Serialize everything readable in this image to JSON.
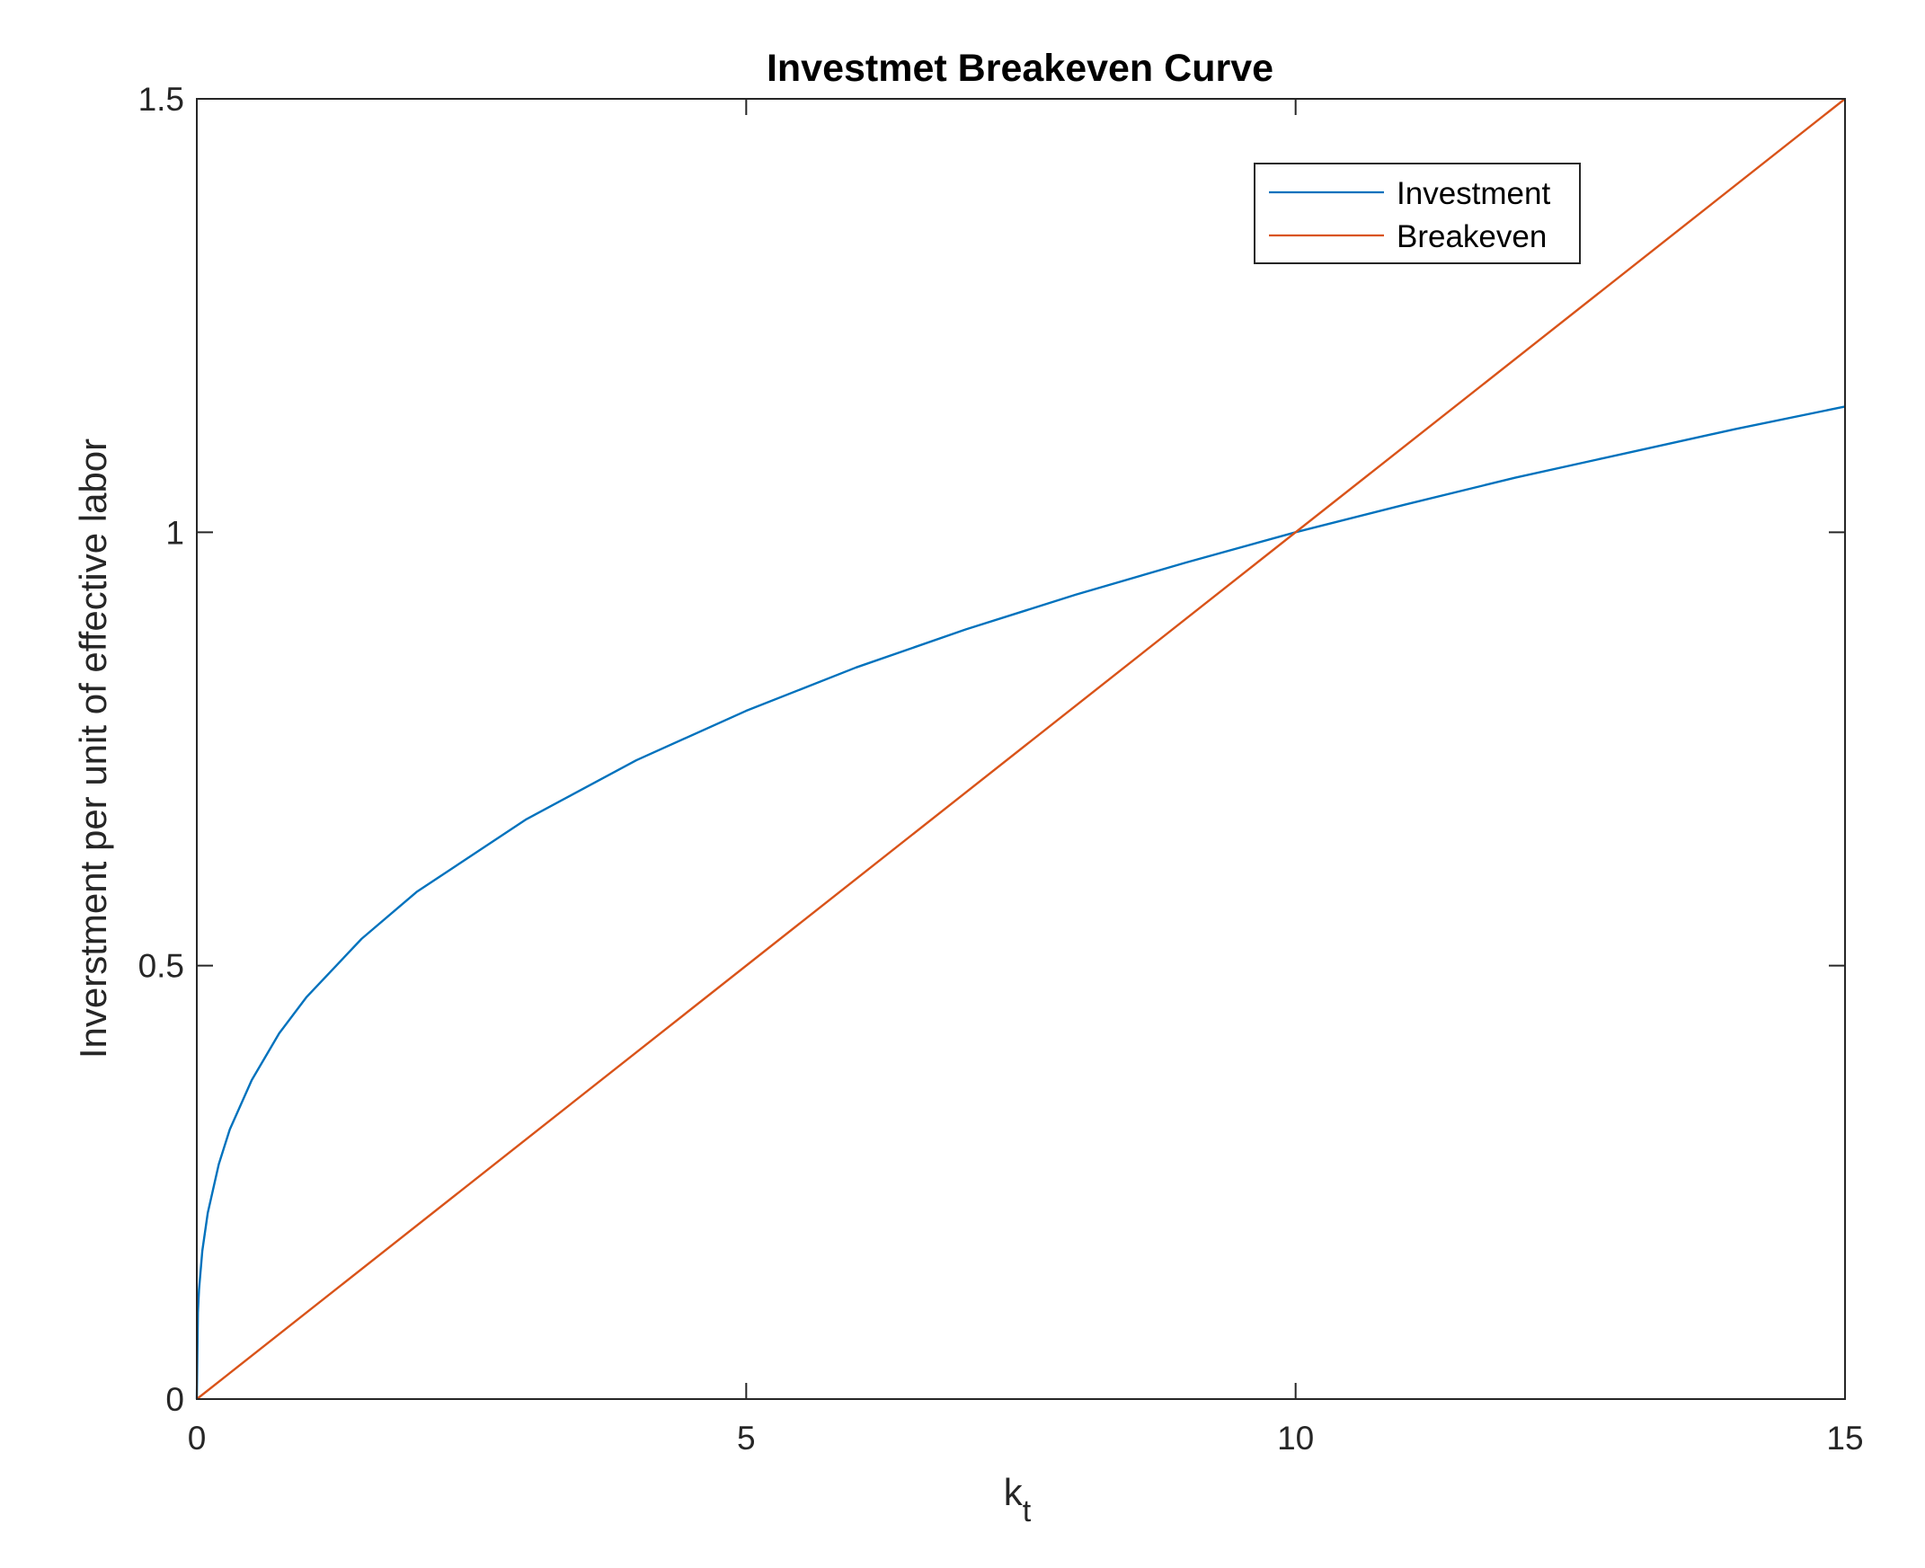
{
  "chart_data": {
    "type": "line",
    "title": "Investmet Breakeven Curve",
    "xlabel_base": "k",
    "xlabel_sub": "t",
    "ylabel": "Inverstment per unit of effective labor",
    "xlim": [
      0,
      15
    ],
    "ylim": [
      0,
      1.5
    ],
    "xticks": [
      0,
      5,
      10,
      15
    ],
    "yticks": [
      0,
      0.5,
      1,
      1.5
    ],
    "xtick_labels": [
      "0",
      "5",
      "10",
      "15"
    ],
    "ytick_labels": [
      "0",
      "0.5",
      "1",
      "1.5"
    ],
    "grid": false,
    "legend_position": "top-right",
    "series": [
      {
        "name": "Investment",
        "color": "#0072BD",
        "x": [
          0,
          0.01,
          0.02,
          0.05,
          0.1,
          0.2,
          0.3,
          0.5,
          0.75,
          1,
          1.5,
          2,
          3,
          4,
          5,
          6,
          7,
          8,
          9,
          10,
          11,
          12,
          13,
          14,
          15
        ],
        "y": [
          0,
          0.1,
          0.126,
          0.171,
          0.215,
          0.271,
          0.311,
          0.368,
          0.422,
          0.464,
          0.531,
          0.585,
          0.669,
          0.737,
          0.794,
          0.844,
          0.888,
          0.928,
          0.965,
          1.0,
          1.032,
          1.063,
          1.091,
          1.119,
          1.145
        ]
      },
      {
        "name": "Breakeven",
        "color": "#D95319",
        "x": [
          0,
          15
        ],
        "y": [
          0,
          1.5
        ]
      }
    ]
  }
}
